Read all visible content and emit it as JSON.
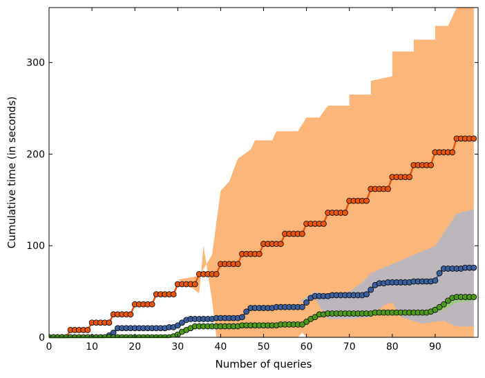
{
  "chart_data": {
    "type": "line",
    "title": "",
    "xlabel": "Number of queries",
    "ylabel": "Cumulative time (in seconds)",
    "xlim": [
      0,
      100
    ],
    "ylim": [
      0,
      360
    ],
    "xticks": [
      0,
      10,
      20,
      30,
      40,
      50,
      60,
      70,
      80,
      90
    ],
    "yticks": [
      0,
      100,
      200,
      300
    ],
    "grid": false,
    "legend": "none",
    "series": [
      {
        "color": "#e6550d",
        "band_color": "#fdae6b",
        "x": [
          0,
          1,
          2,
          3,
          4,
          5,
          6,
          7,
          8,
          9,
          10,
          11,
          12,
          13,
          14,
          15,
          16,
          17,
          18,
          19,
          20,
          21,
          22,
          23,
          24,
          25,
          26,
          27,
          28,
          29,
          30,
          31,
          32,
          33,
          34,
          35,
          36,
          37,
          38,
          39,
          40,
          41,
          42,
          43,
          44,
          45,
          46,
          47,
          48,
          49,
          50,
          51,
          52,
          53,
          54,
          55,
          56,
          57,
          58,
          59,
          60,
          61,
          62,
          63,
          64,
          65,
          66,
          67,
          68,
          69,
          70,
          71,
          72,
          73,
          74,
          75,
          76,
          77,
          78,
          79,
          80,
          81,
          82,
          83,
          84,
          85,
          86,
          87,
          88,
          89,
          90,
          91,
          92,
          93,
          94,
          95,
          96,
          97,
          98,
          99
        ],
        "y": [
          0,
          0,
          0,
          0,
          0,
          8,
          8,
          8,
          8,
          8,
          16,
          16,
          16,
          16,
          16,
          25,
          25,
          25,
          25,
          25,
          36,
          36,
          36,
          36,
          36,
          47,
          47,
          47,
          47,
          47,
          58,
          58,
          58,
          58,
          58,
          69,
          69,
          69,
          69,
          69,
          80,
          80,
          80,
          80,
          80,
          91,
          91,
          91,
          91,
          91,
          102,
          102,
          102,
          102,
          102,
          113,
          113,
          113,
          113,
          113,
          124,
          124,
          124,
          124,
          124,
          136,
          136,
          136,
          136,
          136,
          149,
          149,
          149,
          149,
          149,
          162,
          162,
          162,
          162,
          162,
          175,
          175,
          175,
          175,
          175,
          188,
          188,
          188,
          188,
          188,
          202,
          202,
          202,
          202,
          202,
          217,
          217,
          217,
          217,
          217
        ],
        "band_upper": [
          [
            30,
            63
          ],
          [
            35,
            67
          ],
          [
            38,
            90
          ],
          [
            40,
            160
          ],
          [
            42,
            170
          ],
          [
            44,
            195
          ],
          [
            47,
            205
          ],
          [
            48,
            215
          ],
          [
            52,
            215
          ],
          [
            53,
            225
          ],
          [
            58,
            225
          ],
          [
            60,
            240
          ],
          [
            63,
            240
          ],
          [
            65,
            253
          ],
          [
            70,
            253
          ],
          [
            70,
            265
          ],
          [
            75,
            265
          ],
          [
            75,
            280
          ],
          [
            80,
            285
          ],
          [
            80,
            312
          ],
          [
            85,
            312
          ],
          [
            85,
            325
          ],
          [
            90,
            325
          ],
          [
            90,
            340
          ],
          [
            93,
            340
          ],
          [
            95,
            360
          ],
          [
            99,
            360
          ]
        ],
        "band_lower": [
          [
            30,
            63
          ],
          [
            33,
            55
          ],
          [
            35,
            48
          ],
          [
            36,
            100
          ],
          [
            38,
            40
          ],
          [
            39,
            0
          ],
          [
            58,
            0
          ],
          [
            59,
            5
          ],
          [
            60,
            0
          ],
          [
            99,
            0
          ]
        ]
      },
      {
        "color": "#3a5f9c",
        "band_color": "#9fb8d8",
        "x": [
          0,
          1,
          2,
          3,
          4,
          5,
          6,
          7,
          8,
          9,
          10,
          11,
          12,
          13,
          14,
          15,
          16,
          17,
          18,
          19,
          20,
          21,
          22,
          23,
          24,
          25,
          26,
          27,
          28,
          29,
          30,
          31,
          32,
          33,
          34,
          35,
          36,
          37,
          38,
          39,
          40,
          41,
          42,
          43,
          44,
          45,
          46,
          47,
          48,
          49,
          50,
          51,
          52,
          53,
          54,
          55,
          56,
          57,
          58,
          59,
          60,
          61,
          62,
          63,
          64,
          65,
          66,
          67,
          68,
          69,
          70,
          71,
          72,
          73,
          74,
          75,
          76,
          77,
          78,
          79,
          80,
          81,
          82,
          83,
          84,
          85,
          86,
          87,
          88,
          89,
          90,
          91,
          92,
          93,
          94,
          95,
          96,
          97,
          98,
          99
        ],
        "y": [
          0,
          0,
          0,
          0,
          0,
          0,
          0,
          0,
          0,
          0,
          0,
          0,
          0,
          0,
          2,
          5,
          10,
          10,
          10,
          10,
          10,
          10,
          10,
          10,
          10,
          10,
          10,
          10,
          11,
          11,
          13,
          16,
          19,
          20,
          20,
          20,
          20,
          20,
          20,
          21,
          21,
          21,
          21,
          21,
          21,
          22,
          28,
          32,
          32,
          32,
          32,
          32,
          32,
          33,
          33,
          33,
          33,
          33,
          33,
          33,
          38,
          43,
          45,
          45,
          45,
          45,
          46,
          46,
          46,
          46,
          46,
          46,
          46,
          46,
          47,
          52,
          57,
          59,
          59,
          60,
          60,
          60,
          60,
          60,
          60,
          61,
          61,
          61,
          61,
          61,
          62,
          70,
          75,
          75,
          75,
          75,
          75,
          76,
          76,
          76
        ],
        "band_upper": [
          [
            58,
            38
          ],
          [
            62,
            50
          ],
          [
            65,
            46
          ],
          [
            70,
            50
          ],
          [
            73,
            60
          ],
          [
            75,
            70
          ],
          [
            80,
            80
          ],
          [
            90,
            100
          ],
          [
            95,
            135
          ],
          [
            99,
            140
          ]
        ],
        "band_lower": [
          [
            58,
            38
          ],
          [
            62,
            42
          ],
          [
            65,
            20
          ],
          [
            70,
            20
          ],
          [
            75,
            22
          ],
          [
            78,
            35
          ],
          [
            80,
            38
          ],
          [
            82,
            22
          ],
          [
            87,
            15
          ],
          [
            92,
            18
          ],
          [
            95,
            12
          ],
          [
            99,
            12
          ]
        ]
      },
      {
        "color": "#4d9a1b",
        "band_color": "#8fd16a",
        "x": [
          0,
          1,
          2,
          3,
          4,
          5,
          6,
          7,
          8,
          9,
          10,
          11,
          12,
          13,
          14,
          15,
          16,
          17,
          18,
          19,
          20,
          21,
          22,
          23,
          24,
          25,
          26,
          27,
          28,
          29,
          30,
          31,
          32,
          33,
          34,
          35,
          36,
          37,
          38,
          39,
          40,
          41,
          42,
          43,
          44,
          45,
          46,
          47,
          48,
          49,
          50,
          51,
          52,
          53,
          54,
          55,
          56,
          57,
          58,
          59,
          60,
          61,
          62,
          63,
          64,
          65,
          66,
          67,
          68,
          69,
          70,
          71,
          72,
          73,
          74,
          75,
          76,
          77,
          78,
          79,
          80,
          81,
          82,
          83,
          84,
          85,
          86,
          87,
          88,
          89,
          90,
          91,
          92,
          93,
          94,
          95,
          96,
          97,
          98,
          99
        ],
        "y": [
          0,
          0,
          0,
          0,
          0,
          0,
          0,
          0,
          0,
          0,
          0,
          0,
          0,
          0,
          0,
          0,
          0,
          0,
          0,
          0,
          0,
          0,
          0,
          0,
          0,
          0,
          0,
          0,
          0,
          1,
          3,
          6,
          8,
          10,
          12,
          12,
          12,
          12,
          12,
          12,
          12,
          12,
          12,
          12,
          12,
          13,
          13,
          13,
          13,
          13,
          13,
          13,
          13,
          13,
          14,
          14,
          14,
          14,
          14,
          14,
          17,
          20,
          22,
          25,
          25,
          26,
          26,
          26,
          26,
          26,
          26,
          26,
          26,
          26,
          26,
          26,
          27,
          27,
          27,
          27,
          27,
          27,
          27,
          27,
          27,
          27,
          27,
          27,
          27,
          28,
          30,
          33,
          36,
          40,
          43,
          44,
          44,
          44,
          44,
          44
        ],
        "band_upper": [
          [
            88,
            30
          ],
          [
            92,
            36
          ],
          [
            95,
            46
          ],
          [
            99,
            47
          ]
        ],
        "band_lower": [
          [
            88,
            24
          ],
          [
            92,
            30
          ],
          [
            95,
            38
          ],
          [
            99,
            40
          ]
        ]
      }
    ]
  }
}
